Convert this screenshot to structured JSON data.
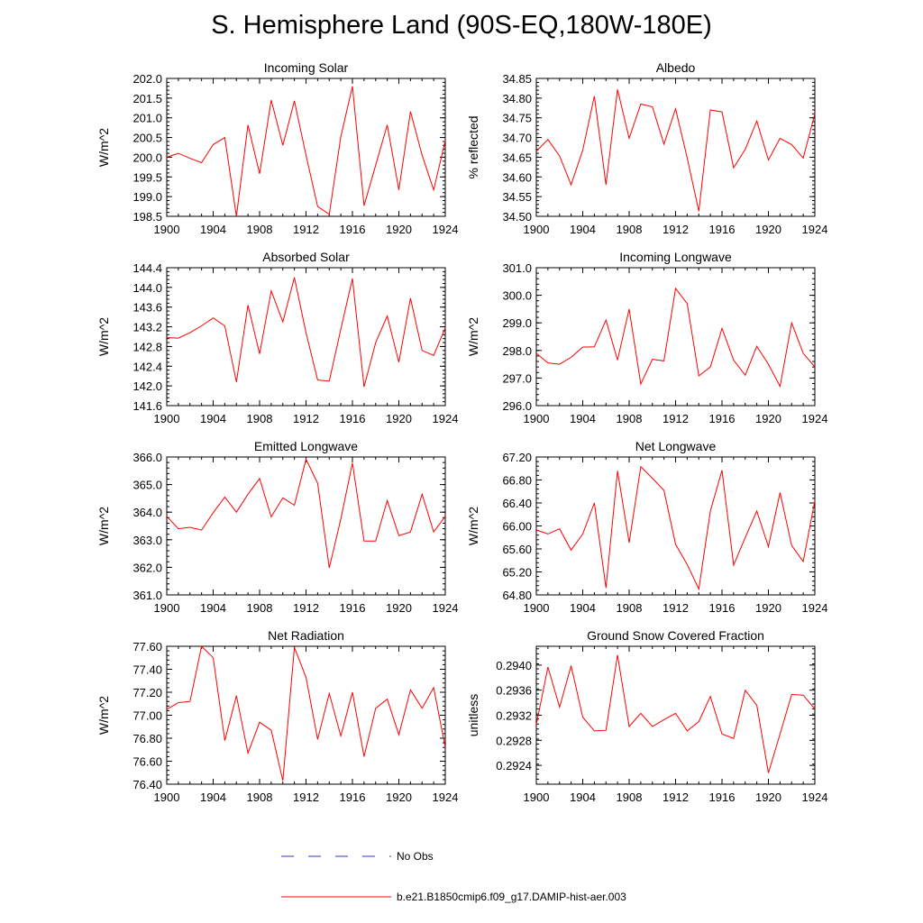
{
  "title": "S. Hemisphere Land (90S-EQ,180W-180E)",
  "legend": [
    {
      "label": "No Obs",
      "color": "#3333cc",
      "style": "dashed"
    },
    {
      "label": "b.e21.B1850cmip6.f09_g17.DAMIP-hist-aer.003",
      "color": "#ff0000",
      "style": "solid"
    }
  ],
  "chart_data": [
    {
      "type": "line",
      "title": "Incoming Solar",
      "ylabel": "W/m^2",
      "xlim": [
        1900,
        1924
      ],
      "ylim": [
        198.5,
        202.0
      ],
      "xticks": [
        "1900",
        "1904",
        "1908",
        "1912",
        "1916",
        "1920",
        "1924"
      ],
      "yticks": [
        "198.5",
        "199.0",
        "199.5",
        "200.0",
        "200.5",
        "201.0",
        "201.5",
        "202.0"
      ],
      "series": [
        {
          "color": "#ff0000",
          "x": [
            1900,
            1901,
            1902,
            1903,
            1904,
            1905,
            1906,
            1907,
            1908,
            1909,
            1910,
            1911,
            1912,
            1913,
            1914,
            1915,
            1916,
            1917,
            1918,
            1919,
            1920,
            1921,
            1922,
            1923,
            1924
          ],
          "y": [
            200.0,
            200.1,
            199.97,
            199.86,
            200.32,
            200.5,
            198.5,
            200.82,
            199.58,
            201.45,
            200.3,
            201.43,
            200.05,
            198.75,
            198.55,
            200.52,
            201.8,
            198.77,
            199.8,
            200.82,
            199.17,
            201.16,
            200.05,
            199.17,
            200.42
          ]
        }
      ]
    },
    {
      "type": "line",
      "title": "Albedo",
      "ylabel": "% reflected",
      "xlim": [
        1900,
        1924
      ],
      "ylim": [
        34.5,
        34.85
      ],
      "xticks": [
        "1900",
        "1904",
        "1908",
        "1912",
        "1916",
        "1920",
        "1924"
      ],
      "yticks": [
        "34.50",
        "34.55",
        "34.60",
        "34.65",
        "34.70",
        "34.75",
        "34.80",
        "34.85"
      ],
      "series": [
        {
          "color": "#ff0000",
          "x": [
            1900,
            1901,
            1902,
            1903,
            1904,
            1905,
            1906,
            1907,
            1908,
            1909,
            1910,
            1911,
            1912,
            1913,
            1914,
            1915,
            1916,
            1917,
            1918,
            1919,
            1920,
            1921,
            1922,
            1923,
            1924
          ],
          "y": [
            34.665,
            34.695,
            34.653,
            34.58,
            34.668,
            34.805,
            34.58,
            34.822,
            34.698,
            34.785,
            34.778,
            34.683,
            34.773,
            34.648,
            34.513,
            34.77,
            34.765,
            34.623,
            34.67,
            34.742,
            34.643,
            34.698,
            34.682,
            34.648,
            34.76
          ]
        }
      ]
    },
    {
      "type": "line",
      "title": "Absorbed Solar",
      "ylabel": "W/m^2",
      "xlim": [
        1900,
        1924
      ],
      "ylim": [
        141.6,
        144.4
      ],
      "xticks": [
        "1900",
        "1904",
        "1908",
        "1912",
        "1916",
        "1920",
        "1924"
      ],
      "yticks": [
        "141.6",
        "142.0",
        "142.4",
        "142.8",
        "143.2",
        "143.6",
        "144.0",
        "144.4"
      ],
      "series": [
        {
          "color": "#ff0000",
          "x": [
            1900,
            1901,
            1902,
            1903,
            1904,
            1905,
            1906,
            1907,
            1908,
            1909,
            1910,
            1911,
            1912,
            1913,
            1914,
            1915,
            1916,
            1917,
            1918,
            1919,
            1920,
            1921,
            1922,
            1923,
            1924
          ],
          "y": [
            142.98,
            142.97,
            143.08,
            143.22,
            143.38,
            143.22,
            142.08,
            143.64,
            142.65,
            143.93,
            143.3,
            144.2,
            143.08,
            142.12,
            142.1,
            143.15,
            144.18,
            141.98,
            142.88,
            143.42,
            142.48,
            143.78,
            142.72,
            142.62,
            143.18
          ]
        }
      ]
    },
    {
      "type": "line",
      "title": "Incoming Longwave",
      "ylabel": "W/m^2",
      "xlim": [
        1900,
        1924
      ],
      "ylim": [
        296.0,
        301.0
      ],
      "xticks": [
        "1900",
        "1904",
        "1908",
        "1912",
        "1916",
        "1920",
        "1924"
      ],
      "yticks": [
        "296.0",
        "297.0",
        "298.0",
        "299.0",
        "300.0",
        "301.0"
      ],
      "series": [
        {
          "color": "#ff0000",
          "x": [
            1900,
            1901,
            1902,
            1903,
            1904,
            1905,
            1906,
            1907,
            1908,
            1909,
            1910,
            1911,
            1912,
            1913,
            1914,
            1915,
            1916,
            1917,
            1918,
            1919,
            1920,
            1921,
            1922,
            1923,
            1924
          ],
          "y": [
            297.9,
            297.55,
            297.5,
            297.75,
            298.12,
            298.13,
            299.1,
            297.65,
            299.5,
            296.78,
            297.68,
            297.62,
            300.25,
            299.7,
            297.08,
            297.4,
            298.8,
            297.65,
            297.1,
            298.15,
            297.5,
            296.7,
            299.0,
            297.9,
            297.4
          ]
        }
      ]
    },
    {
      "type": "line",
      "title": "Emitted Longwave",
      "ylabel": "W/m^2",
      "xlim": [
        1900,
        1924
      ],
      "ylim": [
        361.0,
        366.0
      ],
      "xticks": [
        "1900",
        "1904",
        "1908",
        "1912",
        "1916",
        "1920",
        "1924"
      ],
      "yticks": [
        "361.0",
        "362.0",
        "363.0",
        "364.0",
        "365.0",
        "366.0"
      ],
      "series": [
        {
          "color": "#ff0000",
          "x": [
            1900,
            1901,
            1902,
            1903,
            1904,
            1905,
            1906,
            1907,
            1908,
            1909,
            1910,
            1911,
            1912,
            1913,
            1914,
            1915,
            1916,
            1917,
            1918,
            1919,
            1920,
            1921,
            1922,
            1923,
            1924
          ],
          "y": [
            363.85,
            363.4,
            363.45,
            363.35,
            363.98,
            364.55,
            364.0,
            364.65,
            365.22,
            363.83,
            364.52,
            364.25,
            365.92,
            365.05,
            361.98,
            363.75,
            365.78,
            362.95,
            362.95,
            364.42,
            363.15,
            363.28,
            364.65,
            363.28,
            363.85
          ]
        }
      ]
    },
    {
      "type": "line",
      "title": "Net Longwave",
      "ylabel": "W/m^2",
      "xlim": [
        1900,
        1924
      ],
      "ylim": [
        64.8,
        67.2
      ],
      "xticks": [
        "1900",
        "1904",
        "1908",
        "1912",
        "1916",
        "1920",
        "1924"
      ],
      "yticks": [
        "64.80",
        "65.20",
        "65.60",
        "66.00",
        "66.40",
        "66.80",
        "67.20"
      ],
      "series": [
        {
          "color": "#ff0000",
          "x": [
            1900,
            1901,
            1902,
            1903,
            1904,
            1905,
            1906,
            1907,
            1908,
            1909,
            1910,
            1911,
            1912,
            1913,
            1914,
            1915,
            1916,
            1917,
            1918,
            1919,
            1920,
            1921,
            1922,
            1923,
            1924
          ],
          "y": [
            65.93,
            65.86,
            65.95,
            65.58,
            65.86,
            66.4,
            64.92,
            66.96,
            65.71,
            67.03,
            66.83,
            66.62,
            65.68,
            65.33,
            64.9,
            66.26,
            66.97,
            65.32,
            65.8,
            66.26,
            65.64,
            66.58,
            65.66,
            65.38,
            66.44
          ]
        }
      ]
    },
    {
      "type": "line",
      "title": "Net Radiation",
      "ylabel": "W/m^2",
      "xlim": [
        1900,
        1924
      ],
      "ylim": [
        76.4,
        77.6
      ],
      "xticks": [
        "1900",
        "1904",
        "1908",
        "1912",
        "1916",
        "1920",
        "1924"
      ],
      "yticks": [
        "76.40",
        "76.60",
        "76.80",
        "77.00",
        "77.20",
        "77.40",
        "77.60"
      ],
      "series": [
        {
          "color": "#ff0000",
          "x": [
            1900,
            1901,
            1902,
            1903,
            1904,
            1905,
            1906,
            1907,
            1908,
            1909,
            1910,
            1911,
            1912,
            1913,
            1914,
            1915,
            1916,
            1917,
            1918,
            1919,
            1920,
            1921,
            1922,
            1923,
            1924
          ],
          "y": [
            77.05,
            77.11,
            77.12,
            77.6,
            77.5,
            76.78,
            77.17,
            76.67,
            76.94,
            76.87,
            76.43,
            77.59,
            77.33,
            76.79,
            77.19,
            76.82,
            77.2,
            76.64,
            77.06,
            77.14,
            76.83,
            77.22,
            77.06,
            77.24,
            76.72
          ]
        }
      ]
    },
    {
      "type": "line",
      "title": "Ground Snow Covered Fraction",
      "ylabel": "unitless",
      "xlim": [
        1900,
        1924
      ],
      "ylim": [
        0.2921,
        0.2943
      ],
      "xticks": [
        "1900",
        "1904",
        "1908",
        "1912",
        "1916",
        "1920",
        "1924"
      ],
      "yticks": [
        "0.2924",
        "0.2928",
        "0.2932",
        "0.2936",
        "0.2940"
      ],
      "series": [
        {
          "color": "#ff0000",
          "x": [
            1900,
            1901,
            1902,
            1903,
            1904,
            1905,
            1906,
            1907,
            1908,
            1909,
            1910,
            1911,
            1912,
            1913,
            1914,
            1915,
            1916,
            1917,
            1918,
            1919,
            1920,
            1921,
            1922,
            1923,
            1924
          ],
          "y": [
            0.29305,
            0.29397,
            0.29333,
            0.29399,
            0.29317,
            0.29295,
            0.29296,
            0.29416,
            0.29302,
            0.29323,
            0.29302,
            0.29313,
            0.29323,
            0.29295,
            0.2931,
            0.2935,
            0.2929,
            0.29283,
            0.2936,
            0.29336,
            0.29228,
            0.2929,
            0.29353,
            0.29352,
            0.2933
          ]
        }
      ]
    }
  ]
}
